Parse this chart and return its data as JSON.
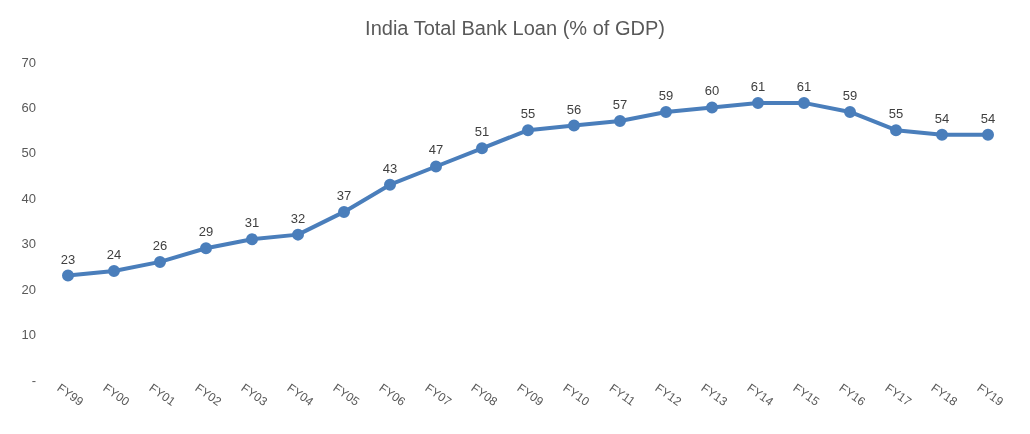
{
  "chart_data": {
    "type": "line",
    "title": "India Total Bank Loan (% of GDP)",
    "categories": [
      "FY99",
      "FY00",
      "FY01",
      "FY02",
      "FY03",
      "FY04",
      "FY05",
      "FY06",
      "FY07",
      "FY08",
      "FY09",
      "FY10",
      "FY11",
      "FY12",
      "FY13",
      "FY14",
      "FY15",
      "FY16",
      "FY17",
      "FY18",
      "FY19"
    ],
    "series": [
      {
        "color": "#4a7ebb",
        "values": [
          23,
          24,
          26,
          29,
          31,
          32,
          37,
          43,
          47,
          51,
          55,
          56,
          57,
          59,
          60,
          61,
          61,
          59,
          55,
          54,
          54
        ]
      }
    ],
    "ylim": [
      0,
      70
    ],
    "yticks": [
      {
        "value": 0,
        "label": "-"
      },
      10,
      20,
      30,
      40,
      50,
      60,
      70
    ],
    "data_labels": true,
    "grid": false,
    "legend": false,
    "marker": "circle",
    "line_style": "solid"
  }
}
